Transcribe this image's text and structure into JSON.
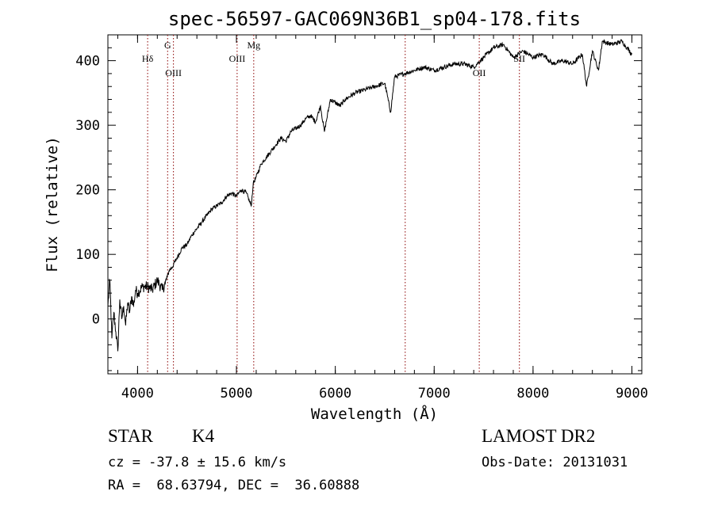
{
  "chart_data": {
    "type": "line",
    "title": "spec-56597-GAC069N36B1_sp04-178.fits",
    "xlabel": "Wavelength (Å)",
    "ylabel": "Flux (relative)",
    "xlim": [
      3700,
      9100
    ],
    "ylim": [
      -85,
      440
    ],
    "x_ticks": [
      4000,
      5000,
      6000,
      7000,
      8000,
      9000
    ],
    "y_ticks": [
      0,
      100,
      200,
      300,
      400
    ],
    "grid": false,
    "line_color": "#000000",
    "marker_color": "#8b0000",
    "series": [
      {
        "x": [
          3700,
          3720,
          3740,
          3760,
          3780,
          3800,
          3820,
          3840,
          3860,
          3880,
          3900,
          3920,
          3940,
          3960,
          3980,
          4000,
          4050,
          4100,
          4150,
          4200,
          4250,
          4280,
          4300,
          4320,
          4350,
          4400,
          4450,
          4500,
          4550,
          4600,
          4650,
          4700,
          4750,
          4800,
          4850,
          4900,
          4950,
          5000,
          5050,
          5100,
          5150,
          5170,
          5200,
          5250,
          5300,
          5350,
          5400,
          5450,
          5500,
          5550,
          5600,
          5650,
          5700,
          5750,
          5800,
          5850,
          5890,
          5950,
          6000,
          6050,
          6100,
          6200,
          6300,
          6400,
          6500,
          6560,
          6600,
          6700,
          6800,
          6900,
          7000,
          7100,
          7200,
          7300,
          7400,
          7500,
          7600,
          7700,
          7800,
          7900,
          8000,
          8100,
          8200,
          8300,
          8400,
          8498,
          8542,
          8600,
          8662,
          8700,
          8800,
          8900,
          8950,
          9000
        ],
        "y": [
          20,
          60,
          -30,
          10,
          -20,
          -50,
          30,
          0,
          20,
          -10,
          25,
          10,
          35,
          20,
          45,
          40,
          50,
          50,
          45,
          60,
          45,
          55,
          65,
          75,
          80,
          95,
          110,
          115,
          130,
          140,
          150,
          160,
          170,
          175,
          180,
          190,
          195,
          190,
          200,
          195,
          175,
          210,
          220,
          240,
          250,
          260,
          270,
          280,
          275,
          290,
          295,
          300,
          310,
          315,
          305,
          330,
          290,
          340,
          335,
          330,
          340,
          350,
          355,
          360,
          365,
          320,
          375,
          380,
          385,
          390,
          385,
          390,
          395,
          395,
          390,
          405,
          420,
          425,
          405,
          415,
          405,
          410,
          395,
          400,
          395,
          410,
          360,
          415,
          385,
          430,
          425,
          430,
          420,
          410
        ]
      }
    ],
    "line_markers": [
      {
        "x": 4102,
        "label": "Hδ",
        "label_row": "upper"
      },
      {
        "x": 4304,
        "label": "G",
        "label_row": "top"
      },
      {
        "x": 4363,
        "label": "OIII",
        "label_row": "lower"
      },
      {
        "x": 5007,
        "label": "OIII",
        "label_row": "upper"
      },
      {
        "x": 5175,
        "label": "Mg",
        "label_row": "top"
      },
      {
        "x": 6707,
        "label": "",
        "label_row": "none"
      },
      {
        "x": 7456,
        "label": "OII",
        "label_row": "lower"
      },
      {
        "x": 7862,
        "label": "SII",
        "label_row": "upper"
      }
    ]
  },
  "info": {
    "object_type": "STAR",
    "subclass": "K4",
    "survey": "LAMOST DR2",
    "velocity": "cz = -37.8 ± 15.6 km/s",
    "obs_date": "Obs-Date: 20131031",
    "coords": "RA =  68.63794, DEC =  36.60888"
  }
}
